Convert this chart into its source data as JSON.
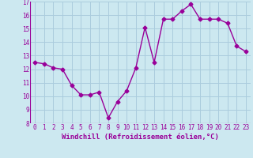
{
  "x": [
    0,
    1,
    2,
    3,
    4,
    5,
    6,
    7,
    8,
    9,
    10,
    11,
    12,
    13,
    14,
    15,
    16,
    17,
    18,
    19,
    20,
    21,
    22,
    23
  ],
  "y": [
    12.5,
    12.4,
    12.1,
    12.0,
    10.8,
    10.1,
    10.1,
    10.3,
    8.4,
    9.6,
    10.4,
    12.1,
    15.1,
    12.5,
    15.7,
    15.7,
    16.3,
    16.8,
    15.7,
    15.7,
    15.7,
    15.4,
    13.7,
    13.3
  ],
  "line_color": "#990099",
  "marker": "D",
  "marker_size": 2.5,
  "bg_color": "#cce8f0",
  "grid_color": "#aaccdd",
  "xlabel": "Windchill (Refroidissement éolien,°C)",
  "ylim": [
    8,
    17
  ],
  "xlim_min": -0.5,
  "xlim_max": 23.5,
  "yticks": [
    8,
    9,
    10,
    11,
    12,
    13,
    14,
    15,
    16,
    17
  ],
  "xticks": [
    0,
    1,
    2,
    3,
    4,
    5,
    6,
    7,
    8,
    9,
    10,
    11,
    12,
    13,
    14,
    15,
    16,
    17,
    18,
    19,
    20,
    21,
    22,
    23
  ],
  "tick_label_fontsize": 5.5,
  "xlabel_fontsize": 6.5,
  "linewidth": 1.0
}
